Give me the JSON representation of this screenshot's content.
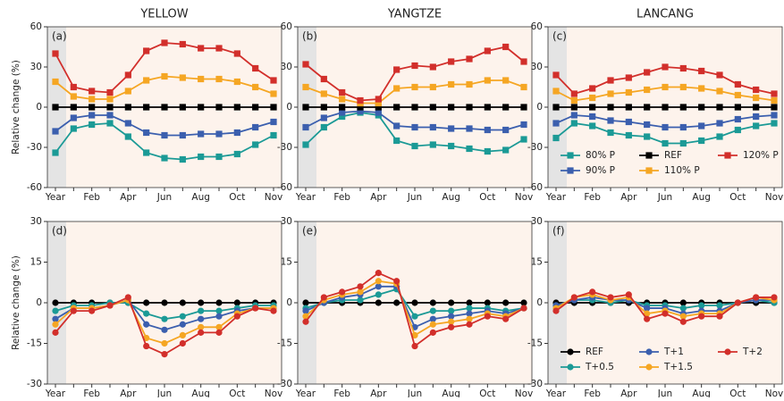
{
  "chart_data": [
    {
      "type": "line",
      "title": "YELLOW",
      "panel_label": "(a)",
      "ylabel": "Relative change (%)",
      "marker": "square",
      "categories": [
        "Year",
        null,
        "Feb",
        null,
        "Apr",
        null,
        "Jun",
        null,
        "Aug",
        null,
        "Oct",
        null,
        "Nov"
      ],
      "ylim": [
        -60,
        60
      ],
      "yticks": [
        -60,
        -30,
        0,
        30,
        60
      ],
      "series": [
        {
          "color": "#1b9a96",
          "values": [
            -34,
            -16,
            -13,
            -12,
            -22,
            -34,
            -38,
            -39,
            -37,
            -37,
            -35,
            -28,
            -21
          ]
        },
        {
          "color": "#3b5fae",
          "values": [
            -18,
            -8,
            -6,
            -6,
            -12,
            -19,
            -21,
            -21,
            -20,
            -20,
            -19,
            -15,
            -11
          ]
        },
        {
          "color": "#000000",
          "values": [
            0,
            0,
            0,
            0,
            0,
            0,
            0,
            0,
            0,
            0,
            0,
            0,
            0
          ]
        },
        {
          "color": "#f5a623",
          "values": [
            19,
            8,
            6,
            6,
            12,
            20,
            23,
            22,
            21,
            21,
            19,
            15,
            10
          ]
        },
        {
          "color": "#d22f2b",
          "values": [
            40,
            15,
            12,
            11,
            24,
            42,
            48,
            47,
            44,
            44,
            40,
            29,
            20
          ]
        }
      ]
    },
    {
      "type": "line",
      "title": "YANGTZE",
      "panel_label": "(b)",
      "marker": "square",
      "categories": [
        "Year",
        null,
        "Feb",
        null,
        "Apr",
        null,
        "Jun",
        null,
        "Aug",
        null,
        "Oct",
        null,
        "Nov"
      ],
      "ylim": [
        -60,
        60
      ],
      "yticks": [
        -60,
        -30,
        0,
        30,
        60
      ],
      "series": [
        {
          "color": "#1b9a96",
          "values": [
            -28,
            -15,
            -7,
            -4,
            -6,
            -25,
            -29,
            -28,
            -29,
            -31,
            -33,
            -32,
            -24
          ]
        },
        {
          "color": "#3b5fae",
          "values": [
            -15,
            -8,
            -4,
            -3,
            -4,
            -14,
            -15,
            -15,
            -16,
            -16,
            -17,
            -17,
            -13
          ]
        },
        {
          "color": "#000000",
          "values": [
            0,
            0,
            0,
            0,
            0,
            0,
            0,
            0,
            0,
            0,
            0,
            0,
            0
          ]
        },
        {
          "color": "#f5a623",
          "values": [
            15,
            10,
            6,
            3,
            3,
            14,
            15,
            15,
            17,
            17,
            20,
            20,
            15
          ]
        },
        {
          "color": "#d22f2b",
          "values": [
            32,
            21,
            11,
            5,
            6,
            28,
            31,
            30,
            34,
            36,
            42,
            45,
            34
          ]
        }
      ]
    },
    {
      "type": "line",
      "title": "LANCANG",
      "panel_label": "(c)",
      "marker": "square",
      "legend": "lower center",
      "categories": [
        "Year",
        null,
        "Feb",
        null,
        "Apr",
        null,
        "Jun",
        null,
        "Aug",
        null,
        "Oct",
        null,
        "Nov"
      ],
      "ylim": [
        -60,
        60
      ],
      "yticks": [
        -60,
        -30,
        0,
        30,
        60
      ],
      "series": [
        {
          "name": "80% P",
          "color": "#1b9a96",
          "values": [
            -23,
            -12,
            -14,
            -19,
            -21,
            -22,
            -27,
            -27,
            -25,
            -22,
            -17,
            -14,
            -12
          ]
        },
        {
          "name": "90% P",
          "color": "#3b5fae",
          "values": [
            -12,
            -6,
            -7,
            -10,
            -11,
            -13,
            -15,
            -15,
            -14,
            -12,
            -9,
            -7,
            -6
          ]
        },
        {
          "name": "REF",
          "color": "#000000",
          "values": [
            0,
            0,
            0,
            0,
            0,
            0,
            0,
            0,
            0,
            0,
            0,
            0,
            0
          ]
        },
        {
          "name": "110% P",
          "color": "#f5a623",
          "values": [
            12,
            5,
            7,
            10,
            11,
            13,
            15,
            15,
            14,
            12,
            9,
            7,
            5
          ]
        },
        {
          "name": "120% P",
          "color": "#d22f2b",
          "values": [
            24,
            10,
            14,
            20,
            22,
            26,
            30,
            29,
            27,
            24,
            17,
            13,
            10
          ]
        }
      ]
    },
    {
      "type": "line",
      "panel_label": "(d)",
      "ylabel": "Relative change (%)",
      "marker": "circle",
      "categories": [
        "Year",
        null,
        "Feb",
        null,
        "Apr",
        null,
        "Jun",
        null,
        "Aug",
        null,
        "Oct",
        null,
        "Nov"
      ],
      "ylim": [
        -30,
        30
      ],
      "yticks": [
        -30,
        -15,
        0,
        15,
        30
      ],
      "series": [
        {
          "color": "#000000",
          "values": [
            0,
            0,
            0,
            0,
            0,
            0,
            0,
            0,
            0,
            0,
            0,
            0,
            0
          ]
        },
        {
          "color": "#1b9a96",
          "values": [
            -3,
            -1,
            -1,
            0,
            0,
            -4,
            -6,
            -5,
            -3,
            -3,
            -2,
            -1,
            -1
          ]
        },
        {
          "color": "#3b5fae",
          "values": [
            -6,
            -2,
            -2,
            -1,
            1,
            -8,
            -10,
            -8,
            -6,
            -5,
            -3,
            -2,
            -2
          ]
        },
        {
          "color": "#f5a623",
          "values": [
            -8,
            -2,
            -2,
            -1,
            1,
            -13,
            -15,
            -12,
            -9,
            -9,
            -4,
            -2,
            -2
          ]
        },
        {
          "color": "#d22f2b",
          "values": [
            -11,
            -3,
            -3,
            -1,
            2,
            -16,
            -19,
            -15,
            -11,
            -11,
            -5,
            -2,
            -3
          ]
        }
      ]
    },
    {
      "type": "line",
      "panel_label": "(e)",
      "marker": "circle",
      "categories": [
        "Year",
        null,
        "Feb",
        null,
        "Apr",
        null,
        "Jun",
        null,
        "Aug",
        null,
        "Oct",
        null,
        "Nov"
      ],
      "ylim": [
        -30,
        30
      ],
      "yticks": [
        -30,
        -15,
        0,
        15,
        30
      ],
      "series": [
        {
          "color": "#000000",
          "values": [
            0,
            0,
            0,
            0,
            0,
            0,
            0,
            0,
            0,
            0,
            0,
            0,
            0
          ]
        },
        {
          "color": "#1b9a96",
          "values": [
            -2,
            0,
            1,
            1,
            3,
            5,
            -5,
            -3,
            -3,
            -2,
            -2,
            -3,
            -2
          ]
        },
        {
          "color": "#3b5fae",
          "values": [
            -3,
            0,
            2,
            3,
            6,
            6,
            -9,
            -6,
            -5,
            -4,
            -3,
            -4,
            -2
          ]
        },
        {
          "color": "#f5a623",
          "values": [
            -5,
            1,
            3,
            4,
            8,
            7,
            -12,
            -8,
            -7,
            -6,
            -4,
            -5,
            -2
          ]
        },
        {
          "color": "#d22f2b",
          "values": [
            -7,
            2,
            4,
            6,
            11,
            8,
            -16,
            -11,
            -9,
            -8,
            -5,
            -6,
            -2
          ]
        }
      ]
    },
    {
      "type": "line",
      "panel_label": "(f)",
      "marker": "circle",
      "legend": "lower center",
      "categories": [
        "Year",
        null,
        "Feb",
        null,
        "Apr",
        null,
        "Jun",
        null,
        "Aug",
        null,
        "Oct",
        null,
        "Nov"
      ],
      "ylim": [
        -30,
        30
      ],
      "yticks": [
        -30,
        -15,
        0,
        15,
        30
      ],
      "series": [
        {
          "name": "REF",
          "color": "#000000",
          "values": [
            0,
            0,
            0,
            0,
            0,
            0,
            0,
            0,
            0,
            0,
            0,
            0,
            0
          ]
        },
        {
          "name": "T+0.5",
          "color": "#1b9a96",
          "values": [
            -1,
            1,
            1,
            0,
            1,
            -1,
            -1,
            -2,
            -1,
            -1,
            0,
            1,
            0
          ]
        },
        {
          "name": "T+1",
          "color": "#3b5fae",
          "values": [
            -1,
            1,
            2,
            1,
            1,
            -2,
            -2,
            -4,
            -3,
            -3,
            0,
            1,
            1
          ]
        },
        {
          "name": "T+1.5",
          "color": "#f5a623",
          "values": [
            -2,
            2,
            3,
            1,
            2,
            -4,
            -3,
            -5,
            -4,
            -4,
            0,
            2,
            1
          ]
        },
        {
          "name": "T+2",
          "color": "#d22f2b",
          "values": [
            -3,
            2,
            4,
            2,
            3,
            -6,
            -4,
            -7,
            -5,
            -5,
            0,
            2,
            2
          ]
        }
      ]
    }
  ]
}
